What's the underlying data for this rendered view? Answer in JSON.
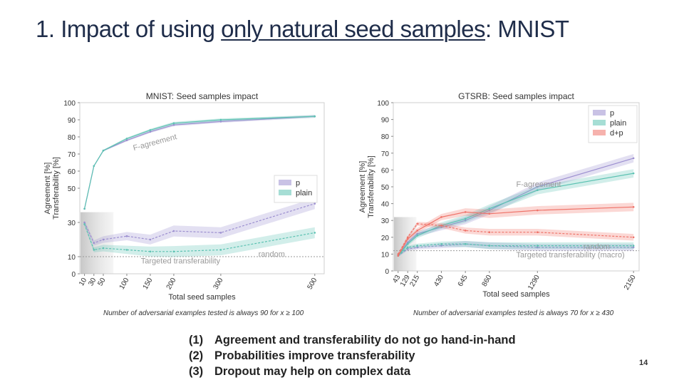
{
  "slide": {
    "title_prefix": "1. Impact of using ",
    "title_underlined": "only natural seed samples",
    "title_suffix": ": MNIST",
    "note_left": "Number of adversarial examples tested is always 90 for x ≥ 100",
    "note_right": "Number of adversarial examples tested is always 70 for x ≥ 430",
    "takeaways": [
      {
        "num": "(1)",
        "text": "Agreement and transferability do not go hand-in-hand"
      },
      {
        "num": "(2)",
        "text": "Probabilities improve transferability"
      },
      {
        "num": "(3)",
        "text": "Dropout may help on complex data"
      }
    ],
    "page_number": "14"
  },
  "chart_data": [
    {
      "type": "line",
      "title": "MNIST: Seed samples impact",
      "xlabel": "Total seed samples",
      "ylabel": "Agreement [%]\nTransferability [%]",
      "xlim": [
        0,
        520
      ],
      "ylim": [
        0,
        100
      ],
      "xticks": [
        10,
        30,
        50,
        100,
        150,
        200,
        300,
        500
      ],
      "yticks": [
        0,
        10,
        30,
        50,
        60,
        70,
        80,
        90,
        100
      ],
      "x": [
        10,
        30,
        50,
        100,
        150,
        200,
        300,
        500
      ],
      "annotations": [
        "F-agreement",
        "Targeted transferability",
        "random"
      ],
      "reference_line": {
        "label": "random",
        "value": 10
      },
      "series": [
        {
          "name": "p",
          "color": "#9c8fd0",
          "agreement": [
            38,
            63,
            72,
            78,
            83,
            87,
            89,
            92
          ],
          "transferability": [
            30,
            18,
            20,
            22,
            20,
            25,
            24,
            41
          ]
        },
        {
          "name": "plain",
          "color": "#5cc2b2",
          "agreement": [
            38,
            63,
            72,
            79,
            84,
            88,
            90,
            92
          ],
          "transferability": [
            29,
            14,
            15,
            14,
            13,
            13,
            14,
            24
          ]
        }
      ],
      "legend": "center-right"
    },
    {
      "type": "line",
      "title": "GTSRB: Seed samples impact",
      "xlabel": "Total seed samples",
      "ylabel": "Agreement [%]\nTransferability [%]",
      "xlim": [
        0,
        2200
      ],
      "ylim": [
        0,
        100
      ],
      "xticks": [
        43,
        129,
        215,
        430,
        645,
        860,
        1290,
        2150
      ],
      "yticks": [
        0,
        10,
        20,
        30,
        40,
        50,
        60,
        70,
        80,
        90,
        100
      ],
      "x": [
        43,
        129,
        215,
        430,
        645,
        860,
        1290,
        2150
      ],
      "annotations": [
        "F-agreement",
        "Targeted transferability (macro)",
        "random"
      ],
      "reference_line": {
        "label": "random",
        "value": 12
      },
      "series": [
        {
          "name": "p",
          "color": "#9c8fd0",
          "agreement": [
            9,
            17,
            22,
            26,
            30,
            36,
            50,
            67
          ],
          "transferability": [
            9,
            13,
            14,
            15,
            16,
            15,
            14,
            14
          ]
        },
        {
          "name": "plain",
          "color": "#5cc2b2",
          "agreement": [
            9,
            16,
            21,
            27,
            31,
            37,
            48,
            58
          ],
          "transferability": [
            9,
            14,
            15,
            16,
            16,
            15,
            15,
            15
          ]
        },
        {
          "name": "d+p",
          "color": "#ef7369",
          "agreement": [
            9,
            19,
            24,
            32,
            35,
            34,
            36,
            38
          ],
          "transferability": [
            10,
            20,
            28,
            27,
            24,
            23,
            23,
            20
          ]
        }
      ],
      "legend": "top-right"
    }
  ]
}
